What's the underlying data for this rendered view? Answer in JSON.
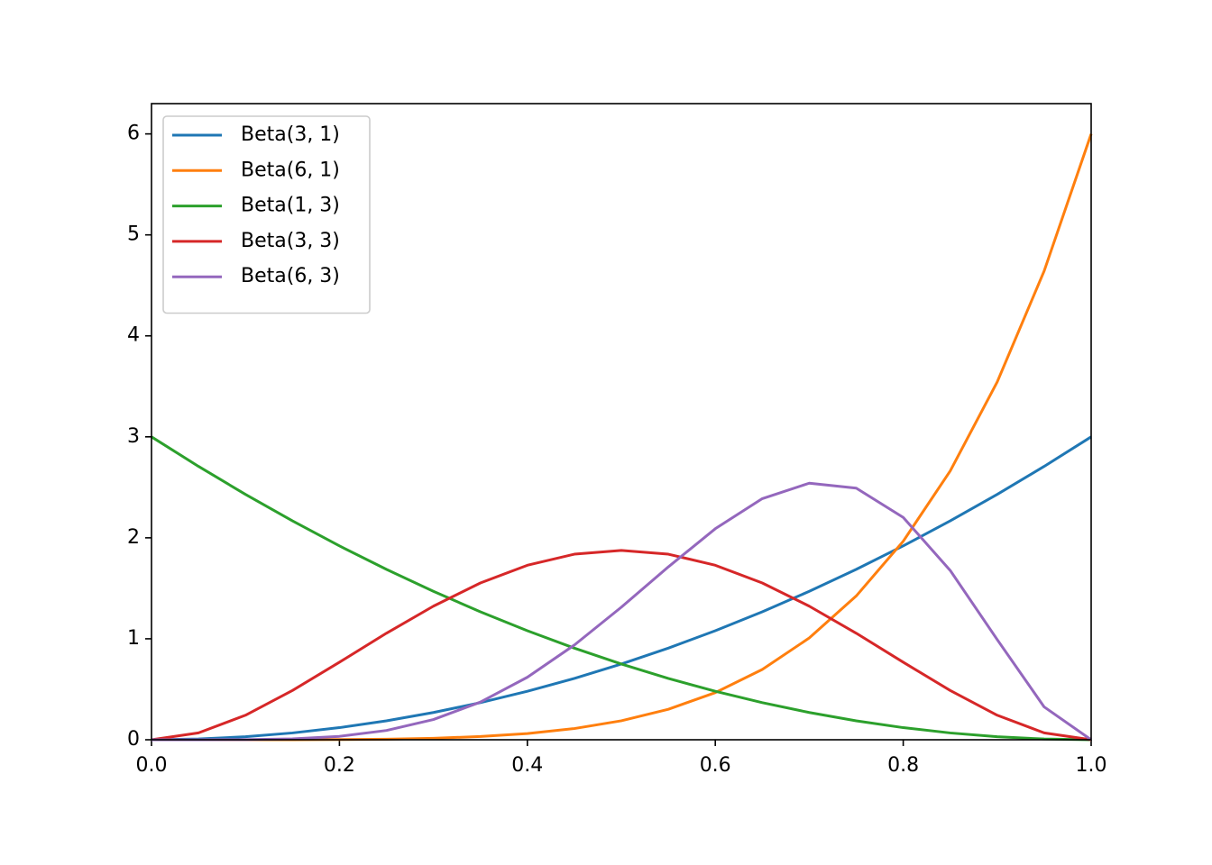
{
  "chart_data": {
    "type": "line",
    "x": [
      0,
      0.05,
      0.1,
      0.15,
      0.2,
      0.25,
      0.3,
      0.35,
      0.4,
      0.45,
      0.5,
      0.55,
      0.6,
      0.65,
      0.7,
      0.75,
      0.8,
      0.85,
      0.9,
      0.95,
      1
    ],
    "series": [
      {
        "name": "Beta(3, 1)",
        "color": "#1f77b4",
        "values": [
          0,
          0.0075,
          0.03,
          0.0675,
          0.12,
          0.1875,
          0.27,
          0.3675,
          0.48,
          0.6075,
          0.75,
          0.9075,
          1.08,
          1.2675,
          1.47,
          1.6875,
          1.92,
          2.1675,
          2.43,
          2.7075,
          3
        ]
      },
      {
        "name": "Beta(6, 1)",
        "color": "#ff7f0e",
        "values": [
          0,
          0,
          0,
          0,
          0.002,
          0.006,
          0.015,
          0.032,
          0.061,
          0.111,
          0.188,
          0.302,
          0.467,
          0.696,
          1.008,
          1.424,
          1.966,
          2.662,
          3.543,
          4.643,
          6
        ]
      },
      {
        "name": "Beta(1, 3)",
        "color": "#2ca02c",
        "values": [
          3,
          2.7075,
          2.43,
          2.1675,
          1.92,
          1.6875,
          1.47,
          1.2675,
          1.08,
          0.9075,
          0.75,
          0.6075,
          0.48,
          0.3675,
          0.27,
          0.1875,
          0.12,
          0.0675,
          0.03,
          0.0075,
          0
        ]
      },
      {
        "name": "Beta(3, 3)",
        "color": "#d62728",
        "values": [
          0,
          0.068,
          0.243,
          0.488,
          0.768,
          1.055,
          1.323,
          1.553,
          1.728,
          1.838,
          1.875,
          1.838,
          1.728,
          1.553,
          1.323,
          1.055,
          0.768,
          0.488,
          0.243,
          0.068,
          0
        ]
      },
      {
        "name": "Beta(6, 3)",
        "color": "#9467bd",
        "values": [
          0,
          0,
          0.001,
          0.009,
          0.034,
          0.092,
          0.2,
          0.373,
          0.619,
          0.938,
          1.313,
          1.712,
          2.09,
          2.388,
          2.541,
          2.492,
          2.202,
          1.677,
          0.992,
          0.325,
          0
        ]
      }
    ],
    "xlim": [
      0,
      1
    ],
    "ylim": [
      0,
      6.3
    ],
    "xticks": [
      {
        "value": 0,
        "label": "0.0"
      },
      {
        "value": 0.2,
        "label": "0.2"
      },
      {
        "value": 0.4,
        "label": "0.4"
      },
      {
        "value": 0.6,
        "label": "0.6"
      },
      {
        "value": 0.8,
        "label": "0.8"
      },
      {
        "value": 1,
        "label": "1.0"
      }
    ],
    "yticks": [
      0,
      1,
      2,
      3,
      4,
      5,
      6
    ],
    "legend": "upper-left",
    "grid": false
  }
}
